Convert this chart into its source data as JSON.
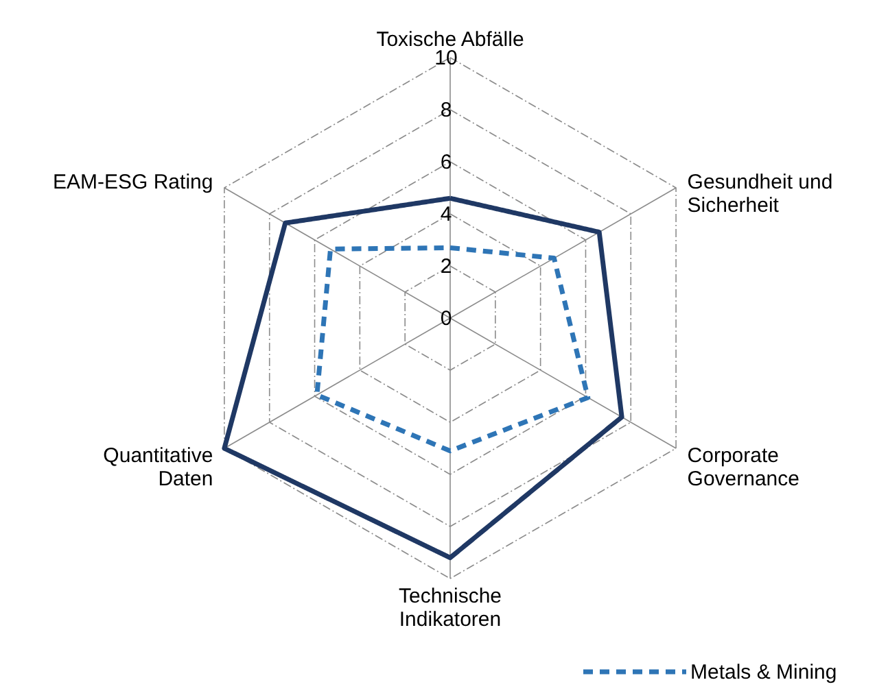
{
  "chart_data": {
    "type": "radar",
    "categories": [
      "Toxische Abfälle",
      "Gesundheit und\nSicherheit",
      "Corporate\nGovernance",
      "Technische\nIndikatoren",
      "Quantitative\nDaten",
      "EAM-ESG Rating"
    ],
    "ylim": [
      0,
      10
    ],
    "yticks": [
      0,
      2,
      4,
      6,
      8,
      10
    ],
    "grid": true,
    "legend": "bottom",
    "marker": "none",
    "series": [
      {
        "color": "#1f3864",
        "line_style": "solid",
        "values": [
          4.6,
          6.6,
          7.6,
          9.2,
          10,
          7.3
        ]
      },
      {
        "name": "Metals & Mining",
        "color": "#2e75b6",
        "line_style": "dashed",
        "values": [
          2.7,
          4.6,
          6.1,
          5.1,
          5.9,
          5.3
        ]
      }
    ]
  }
}
